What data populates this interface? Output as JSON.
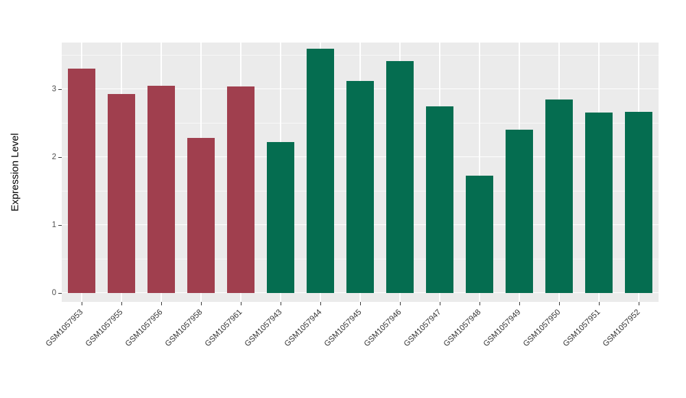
{
  "chart_data": {
    "type": "bar",
    "title": "",
    "xlabel": "",
    "ylabel": "Expression Level",
    "categories": [
      "GSM1057953",
      "GSM1057955",
      "GSM1057956",
      "GSM1057958",
      "GSM1057961",
      "GSM1057943",
      "GSM1057944",
      "GSM1057945",
      "GSM1057946",
      "GSM1057947",
      "GSM1057948",
      "GSM1057949",
      "GSM1057950",
      "GSM1057951",
      "GSM1057952"
    ],
    "values": [
      3.3,
      2.93,
      3.05,
      2.28,
      3.04,
      2.22,
      3.6,
      3.12,
      3.41,
      2.75,
      1.73,
      2.4,
      2.85,
      2.66,
      2.67
    ],
    "group_split_index": 5,
    "colors": {
      "group1": "#A03F4E",
      "group2": "#056D50"
    },
    "yticks": [
      0,
      1,
      2,
      3
    ],
    "minor_ticks": [
      0.5,
      1.5,
      2.5,
      3.5
    ],
    "ylim": [
      0,
      3.75
    ],
    "grid": true,
    "legend": "none",
    "panel_bg": "#EBEBEB",
    "grid_color": "#FFFFFF"
  }
}
